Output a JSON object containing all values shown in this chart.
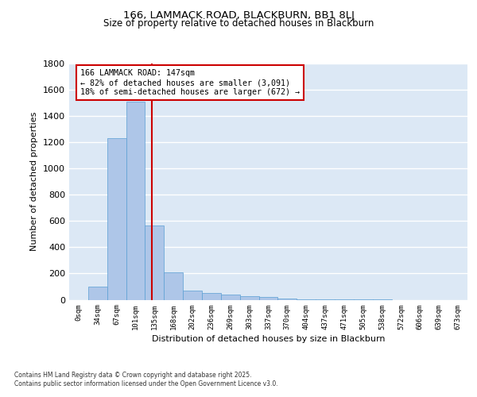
{
  "title1": "166, LAMMACK ROAD, BLACKBURN, BB1 8LJ",
  "title2": "Size of property relative to detached houses in Blackburn",
  "xlabel": "Distribution of detached houses by size in Blackburn",
  "ylabel": "Number of detached properties",
  "bar_color": "#aec6e8",
  "bar_edge_color": "#5a9fd4",
  "background_color": "#dce8f5",
  "grid_color": "#ffffff",
  "bin_labels": [
    "0sqm",
    "34sqm",
    "67sqm",
    "101sqm",
    "135sqm",
    "168sqm",
    "202sqm",
    "236sqm",
    "269sqm",
    "303sqm",
    "337sqm",
    "370sqm",
    "404sqm",
    "437sqm",
    "471sqm",
    "505sqm",
    "538sqm",
    "572sqm",
    "606sqm",
    "639sqm",
    "673sqm"
  ],
  "bar_heights": [
    0,
    100,
    1230,
    1510,
    565,
    210,
    70,
    50,
    40,
    30,
    20,
    10,
    5,
    3,
    2,
    1,
    1,
    0,
    0,
    0,
    0
  ],
  "red_line_x": 3.86,
  "annotation_line1": "166 LAMMACK ROAD: 147sqm",
  "annotation_line2": "← 82% of detached houses are smaller (3,091)",
  "annotation_line3": "18% of semi-detached houses are larger (672) →",
  "ylim": [
    0,
    1800
  ],
  "yticks": [
    0,
    200,
    400,
    600,
    800,
    1000,
    1200,
    1400,
    1600,
    1800
  ],
  "footer1": "Contains HM Land Registry data © Crown copyright and database right 2025.",
  "footer2": "Contains public sector information licensed under the Open Government Licence v3.0."
}
